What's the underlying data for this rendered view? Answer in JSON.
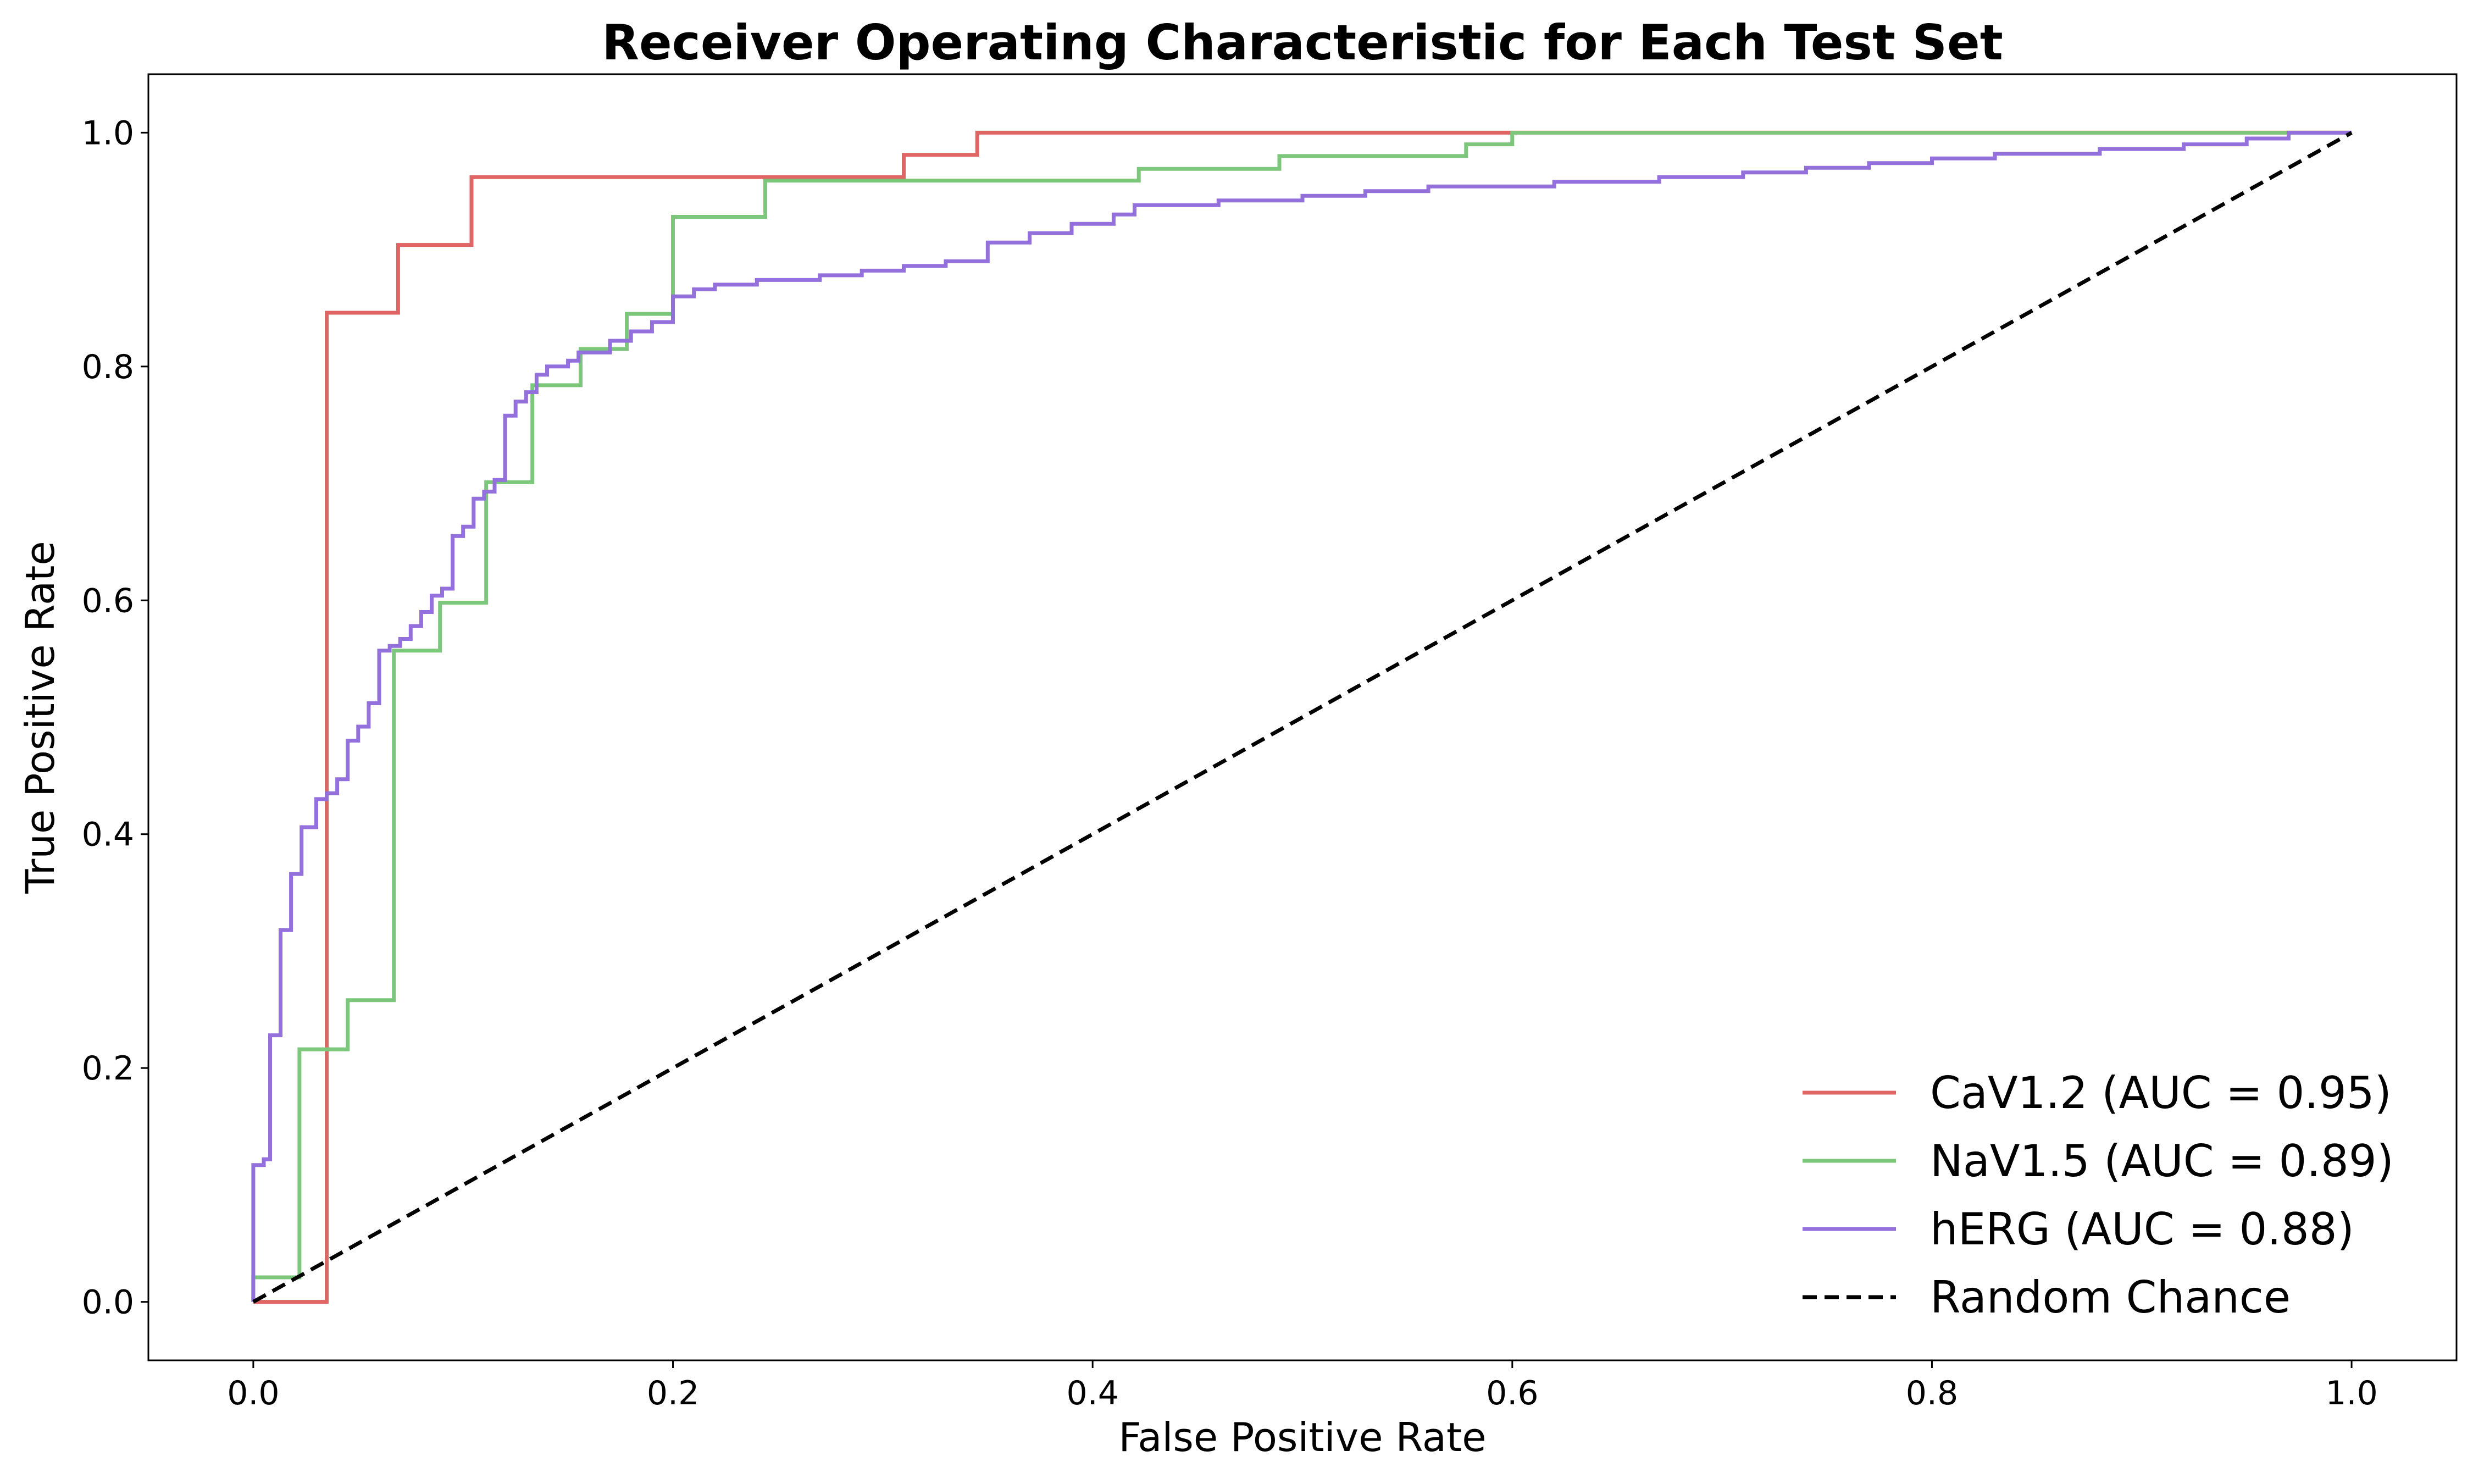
{
  "chart_data": {
    "type": "line",
    "title": "Receiver Operating Characteristic for Each Test Set",
    "xlabel": "False Positive Rate",
    "ylabel": "True Positive Rate",
    "xlim": [
      -0.05,
      1.05
    ],
    "ylim": [
      -0.05,
      1.05
    ],
    "xticks": [
      0.0,
      0.2,
      0.4,
      0.6,
      0.8,
      1.0
    ],
    "xtick_labels": [
      "0.0",
      "0.2",
      "0.4",
      "0.6",
      "0.8",
      "1.0"
    ],
    "yticks": [
      0.0,
      0.2,
      0.4,
      0.6,
      0.8,
      1.0
    ],
    "ytick_labels": [
      "0.0",
      "0.2",
      "0.4",
      "0.6",
      "0.8",
      "1.0"
    ],
    "grid": false,
    "legend_position": "lower-right",
    "series": [
      {
        "name": "CaV1.2 (AUC = 0.95)",
        "color": "#e06666",
        "dash": "solid",
        "points": [
          [
            0,
            0
          ],
          [
            0.035,
            0
          ],
          [
            0.035,
            0.846
          ],
          [
            0.069,
            0.846
          ],
          [
            0.069,
            0.904
          ],
          [
            0.104,
            0.904
          ],
          [
            0.104,
            0.962
          ],
          [
            0.31,
            0.962
          ],
          [
            0.31,
            0.981
          ],
          [
            0.345,
            0.981
          ],
          [
            0.345,
            1.0
          ],
          [
            0.6,
            1.0
          ],
          [
            1.0,
            1.0
          ]
        ]
      },
      {
        "name": "NaV1.5 (AUC = 0.89)",
        "color": "#7cc77c",
        "dash": "solid",
        "points": [
          [
            0,
            0
          ],
          [
            0,
            0.021
          ],
          [
            0.022,
            0.021
          ],
          [
            0.022,
            0.216
          ],
          [
            0.045,
            0.216
          ],
          [
            0.045,
            0.258
          ],
          [
            0.067,
            0.258
          ],
          [
            0.067,
            0.557
          ],
          [
            0.089,
            0.557
          ],
          [
            0.089,
            0.598
          ],
          [
            0.111,
            0.598
          ],
          [
            0.111,
            0.701
          ],
          [
            0.133,
            0.701
          ],
          [
            0.133,
            0.784
          ],
          [
            0.156,
            0.784
          ],
          [
            0.156,
            0.815
          ],
          [
            0.178,
            0.815
          ],
          [
            0.178,
            0.845
          ],
          [
            0.2,
            0.845
          ],
          [
            0.2,
            0.928
          ],
          [
            0.244,
            0.928
          ],
          [
            0.244,
            0.959
          ],
          [
            0.422,
            0.959
          ],
          [
            0.422,
            0.969
          ],
          [
            0.489,
            0.969
          ],
          [
            0.489,
            0.98
          ],
          [
            0.578,
            0.98
          ],
          [
            0.578,
            0.99
          ],
          [
            0.6,
            0.99
          ],
          [
            0.6,
            1.0
          ],
          [
            1.0,
            1.0
          ]
        ]
      },
      {
        "name": "hERG (AUC = 0.88)",
        "color": "#9370db",
        "dash": "solid",
        "points": [
          [
            0,
            0
          ],
          [
            0,
            0.117
          ],
          [
            0.005,
            0.117
          ],
          [
            0.005,
            0.122
          ],
          [
            0.008,
            0.122
          ],
          [
            0.008,
            0.228
          ],
          [
            0.013,
            0.228
          ],
          [
            0.013,
            0.318
          ],
          [
            0.018,
            0.318
          ],
          [
            0.018,
            0.366
          ],
          [
            0.023,
            0.366
          ],
          [
            0.023,
            0.406
          ],
          [
            0.03,
            0.406
          ],
          [
            0.03,
            0.43
          ],
          [
            0.035,
            0.43
          ],
          [
            0.035,
            0.435
          ],
          [
            0.04,
            0.435
          ],
          [
            0.04,
            0.447
          ],
          [
            0.045,
            0.447
          ],
          [
            0.045,
            0.48
          ],
          [
            0.05,
            0.48
          ],
          [
            0.05,
            0.492
          ],
          [
            0.055,
            0.492
          ],
          [
            0.055,
            0.512
          ],
          [
            0.06,
            0.512
          ],
          [
            0.06,
            0.557
          ],
          [
            0.065,
            0.557
          ],
          [
            0.065,
            0.561
          ],
          [
            0.07,
            0.561
          ],
          [
            0.07,
            0.567
          ],
          [
            0.075,
            0.567
          ],
          [
            0.075,
            0.578
          ],
          [
            0.08,
            0.578
          ],
          [
            0.08,
            0.59
          ],
          [
            0.085,
            0.59
          ],
          [
            0.085,
            0.604
          ],
          [
            0.09,
            0.604
          ],
          [
            0.09,
            0.61
          ],
          [
            0.095,
            0.61
          ],
          [
            0.095,
            0.655
          ],
          [
            0.1,
            0.655
          ],
          [
            0.1,
            0.663
          ],
          [
            0.105,
            0.663
          ],
          [
            0.105,
            0.687
          ],
          [
            0.11,
            0.687
          ],
          [
            0.11,
            0.693
          ],
          [
            0.115,
            0.693
          ],
          [
            0.115,
            0.703
          ],
          [
            0.12,
            0.703
          ],
          [
            0.12,
            0.758
          ],
          [
            0.125,
            0.758
          ],
          [
            0.125,
            0.77
          ],
          [
            0.13,
            0.77
          ],
          [
            0.13,
            0.778
          ],
          [
            0.135,
            0.778
          ],
          [
            0.135,
            0.793
          ],
          [
            0.14,
            0.793
          ],
          [
            0.14,
            0.8
          ],
          [
            0.15,
            0.8
          ],
          [
            0.15,
            0.805
          ],
          [
            0.155,
            0.805
          ],
          [
            0.155,
            0.812
          ],
          [
            0.17,
            0.812
          ],
          [
            0.17,
            0.822
          ],
          [
            0.18,
            0.822
          ],
          [
            0.18,
            0.83
          ],
          [
            0.19,
            0.83
          ],
          [
            0.19,
            0.838
          ],
          [
            0.2,
            0.838
          ],
          [
            0.2,
            0.86
          ],
          [
            0.21,
            0.86
          ],
          [
            0.21,
            0.866
          ],
          [
            0.22,
            0.866
          ],
          [
            0.22,
            0.87
          ],
          [
            0.24,
            0.87
          ],
          [
            0.24,
            0.874
          ],
          [
            0.27,
            0.874
          ],
          [
            0.27,
            0.878
          ],
          [
            0.29,
            0.878
          ],
          [
            0.29,
            0.882
          ],
          [
            0.31,
            0.882
          ],
          [
            0.31,
            0.886
          ],
          [
            0.33,
            0.886
          ],
          [
            0.33,
            0.89
          ],
          [
            0.35,
            0.89
          ],
          [
            0.35,
            0.906
          ],
          [
            0.37,
            0.906
          ],
          [
            0.37,
            0.914
          ],
          [
            0.39,
            0.914
          ],
          [
            0.39,
            0.922
          ],
          [
            0.41,
            0.922
          ],
          [
            0.41,
            0.93
          ],
          [
            0.42,
            0.93
          ],
          [
            0.42,
            0.938
          ],
          [
            0.46,
            0.938
          ],
          [
            0.46,
            0.942
          ],
          [
            0.5,
            0.942
          ],
          [
            0.5,
            0.946
          ],
          [
            0.53,
            0.946
          ],
          [
            0.53,
            0.95
          ],
          [
            0.56,
            0.95
          ],
          [
            0.56,
            0.954
          ],
          [
            0.62,
            0.954
          ],
          [
            0.62,
            0.958
          ],
          [
            0.67,
            0.958
          ],
          [
            0.67,
            0.962
          ],
          [
            0.71,
            0.962
          ],
          [
            0.71,
            0.966
          ],
          [
            0.74,
            0.966
          ],
          [
            0.74,
            0.97
          ],
          [
            0.77,
            0.97
          ],
          [
            0.77,
            0.974
          ],
          [
            0.8,
            0.974
          ],
          [
            0.8,
            0.978
          ],
          [
            0.83,
            0.978
          ],
          [
            0.83,
            0.982
          ],
          [
            0.88,
            0.982
          ],
          [
            0.88,
            0.986
          ],
          [
            0.92,
            0.986
          ],
          [
            0.92,
            0.99
          ],
          [
            0.95,
            0.99
          ],
          [
            0.95,
            0.995
          ],
          [
            0.97,
            0.995
          ],
          [
            0.97,
            1.0
          ],
          [
            1.0,
            1.0
          ]
        ]
      },
      {
        "name": "Random Chance",
        "color": "#000000",
        "dash": "dashed",
        "points": [
          [
            0,
            0
          ],
          [
            1,
            1
          ]
        ]
      }
    ]
  }
}
